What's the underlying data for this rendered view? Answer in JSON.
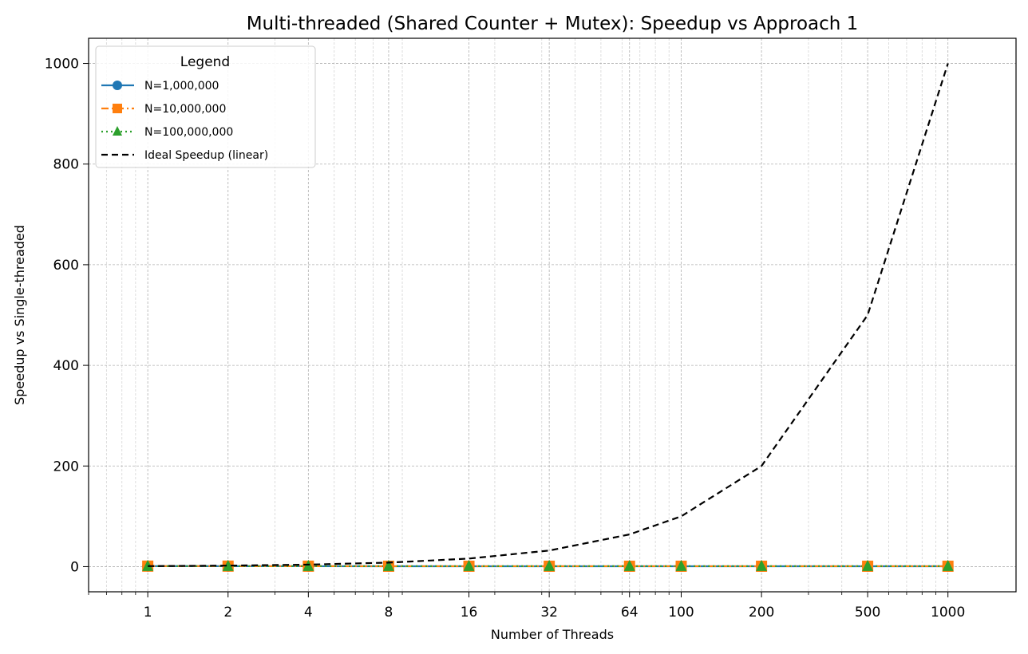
{
  "chart_data": {
    "type": "line",
    "title": "Multi-threaded (Shared Counter + Mutex): Speedup vs Approach 1",
    "xlabel": "Number of Threads",
    "ylabel": "Speedup vs Single-threaded",
    "x_scale": "log",
    "x": [
      1,
      2,
      4,
      8,
      16,
      32,
      64,
      100,
      200,
      500,
      1000
    ],
    "x_tick_labels": [
      "1",
      "2",
      "4",
      "8",
      "16",
      "32",
      "64",
      "100",
      "200",
      "500",
      "1000"
    ],
    "xlim": [
      0.6,
      1800
    ],
    "ylim": [
      -50,
      1050
    ],
    "y_ticks": [
      0,
      200,
      400,
      600,
      800,
      1000
    ],
    "grid": true,
    "legend": {
      "title": "Legend",
      "placement": "top-left"
    },
    "series": [
      {
        "name": "N=1,000,000",
        "color": "#1f77b4",
        "marker": "circle",
        "line_style": "solid",
        "values": [
          1,
          0.9,
          0.8,
          0.7,
          0.7,
          0.7,
          0.7,
          0.7,
          0.7,
          0.7,
          0.7
        ]
      },
      {
        "name": "N=10,000,000",
        "color": "#ff7f0e",
        "marker": "square",
        "line_style": "dashdot",
        "values": [
          1,
          1,
          0.9,
          0.8,
          0.8,
          0.8,
          0.8,
          0.8,
          0.8,
          0.8,
          0.8
        ]
      },
      {
        "name": "N=100,000,000",
        "color": "#2ca02c",
        "marker": "triangle",
        "line_style": "dotted",
        "values": [
          1,
          1,
          1,
          0.9,
          0.9,
          0.9,
          0.9,
          0.9,
          0.9,
          0.9,
          0.9
        ]
      },
      {
        "name": "Ideal Speedup (linear)",
        "color": "#000000",
        "marker": "none",
        "line_style": "dashed",
        "values": [
          1,
          2,
          4,
          8,
          16,
          32,
          64,
          100,
          200,
          500,
          1000
        ]
      }
    ]
  }
}
